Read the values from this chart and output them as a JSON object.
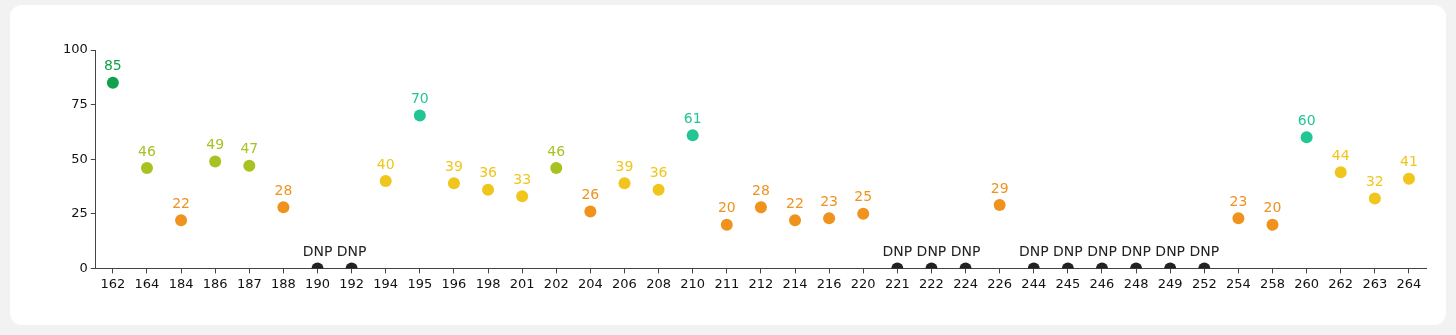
{
  "chart_data": {
    "type": "scatter",
    "marker": "circle",
    "grid": false,
    "legend": false,
    "categories": [
      "162",
      "164",
      "184",
      "186",
      "187",
      "188",
      "190",
      "192",
      "194",
      "195",
      "196",
      "198",
      "201",
      "202",
      "204",
      "206",
      "208",
      "210",
      "211",
      "212",
      "214",
      "216",
      "220",
      "221",
      "222",
      "224",
      "226",
      "244",
      "245",
      "246",
      "248",
      "249",
      "252",
      "254",
      "258",
      "260",
      "262",
      "263",
      "264"
    ],
    "values": [
      85,
      46,
      22,
      49,
      47,
      28,
      0,
      0,
      40,
      70,
      39,
      36,
      33,
      46,
      26,
      39,
      36,
      61,
      20,
      28,
      22,
      23,
      25,
      0,
      0,
      0,
      29,
      0,
      0,
      0,
      0,
      0,
      0,
      23,
      20,
      60,
      44,
      32,
      41
    ],
    "value_labels": [
      "85",
      "46",
      "22",
      "49",
      "47",
      "28",
      "DNP",
      "DNP",
      "40",
      "70",
      "39",
      "36",
      "33",
      "46",
      "26",
      "39",
      "36",
      "61",
      "20",
      "28",
      "22",
      "23",
      "25",
      "DNP",
      "DNP",
      "DNP",
      "29",
      "DNP",
      "DNP",
      "DNP",
      "DNP",
      "DNP",
      "DNP",
      "23",
      "20",
      "60",
      "44",
      "32",
      "41"
    ],
    "colors": [
      "#0fa24a",
      "#a6c322",
      "#f0921e",
      "#a6c322",
      "#a6c322",
      "#f0921e",
      "#222222",
      "#222222",
      "#f0c51c",
      "#22c594",
      "#f0c51c",
      "#f0c51c",
      "#f0c51c",
      "#a6c322",
      "#f0921e",
      "#f0c51c",
      "#f0c51c",
      "#22c594",
      "#f0921e",
      "#f0921e",
      "#f0921e",
      "#f0921e",
      "#f0921e",
      "#222222",
      "#222222",
      "#222222",
      "#f0921e",
      "#222222",
      "#222222",
      "#222222",
      "#222222",
      "#222222",
      "#222222",
      "#f0921e",
      "#f0921e",
      "#22c594",
      "#f0c51c",
      "#f0c51c",
      "#f0c51c"
    ],
    "ylim": [
      0,
      100
    ],
    "yticks": [
      0,
      25,
      50,
      75,
      100
    ]
  }
}
